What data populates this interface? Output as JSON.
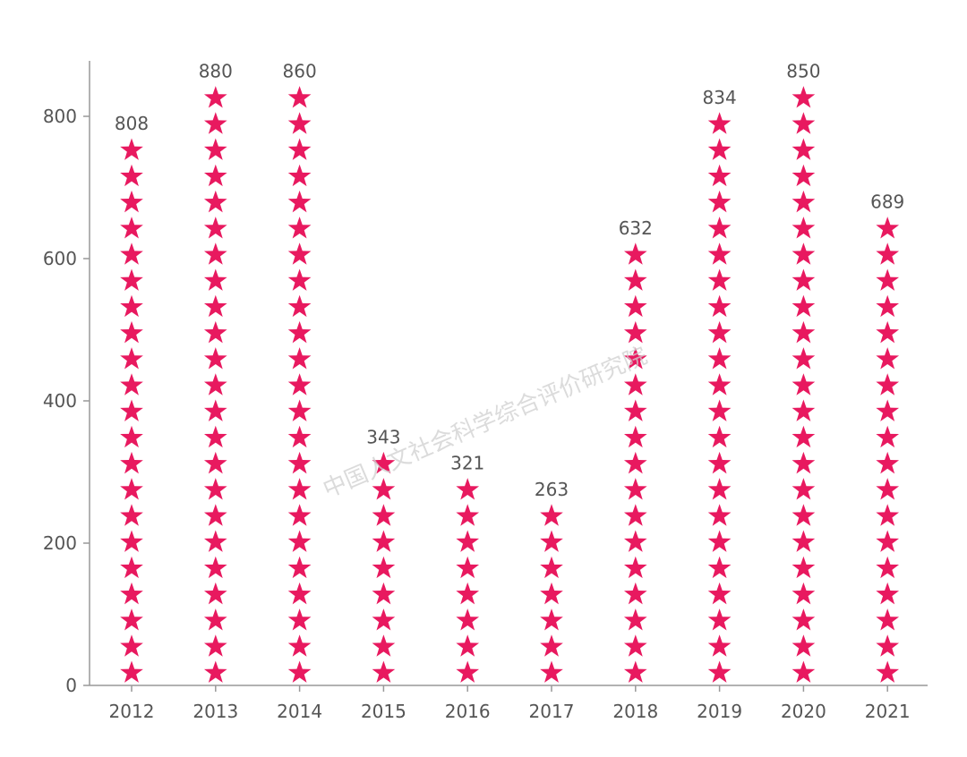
{
  "chart_data": {
    "type": "bar",
    "categories": [
      "2012",
      "2013",
      "2014",
      "2015",
      "2016",
      "2017",
      "2018",
      "2019",
      "2020",
      "2021"
    ],
    "values": [
      808,
      880,
      860,
      343,
      321,
      263,
      632,
      834,
      850,
      689
    ],
    "title": "",
    "xlabel": "",
    "ylabel": "",
    "ylim": [
      0,
      880
    ],
    "yticks": [
      0,
      200,
      400,
      600,
      800
    ],
    "grid": false,
    "legend": "none",
    "mark_style": "pictograph-stars",
    "mark_color": "#E8195F"
  },
  "watermark": "中国人文社会科学综合评价研究院"
}
